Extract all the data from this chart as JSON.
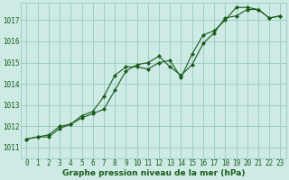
{
  "xlabel": "Graphe pression niveau de la mer (hPa)",
  "bg_color": "#cdeae5",
  "grid_color": "#a0cdc8",
  "line_color": "#1a5c1a",
  "marker_color": "#1a5c1a",
  "x_ticks": [
    0,
    1,
    2,
    3,
    4,
    5,
    6,
    7,
    8,
    9,
    10,
    11,
    12,
    13,
    14,
    15,
    16,
    17,
    18,
    19,
    20,
    21,
    22,
    23
  ],
  "y_ticks": [
    1011,
    1012,
    1013,
    1014,
    1015,
    1016,
    1017
  ],
  "xlim": [
    -0.5,
    23.5
  ],
  "ylim": [
    1010.5,
    1017.8
  ],
  "series1_x": [
    0,
    1,
    2,
    3,
    4,
    5,
    6,
    7,
    8,
    9,
    10,
    11,
    12,
    13,
    14,
    15,
    16,
    17,
    18,
    19,
    20,
    21,
    22,
    23
  ],
  "series1_y": [
    1011.4,
    1011.5,
    1011.5,
    1011.9,
    1012.1,
    1012.4,
    1012.6,
    1012.8,
    1013.7,
    1014.6,
    1014.9,
    1015.0,
    1015.3,
    1014.8,
    1014.4,
    1014.9,
    1015.9,
    1016.4,
    1017.1,
    1017.2,
    1017.5,
    1017.5,
    1017.1,
    1017.2
  ],
  "series2_x": [
    0,
    1,
    2,
    3,
    4,
    5,
    6,
    7,
    8,
    9,
    10,
    11,
    12,
    13,
    14,
    15,
    16,
    17,
    18,
    19,
    20,
    21,
    22,
    23
  ],
  "series2_y": [
    1011.4,
    1011.5,
    1011.6,
    1012.0,
    1012.1,
    1012.5,
    1012.7,
    1013.4,
    1014.4,
    1014.8,
    1014.8,
    1014.7,
    1015.0,
    1015.1,
    1014.3,
    1015.4,
    1016.3,
    1016.5,
    1017.0,
    1017.6,
    1017.6,
    1017.5,
    1017.1,
    1017.2
  ],
  "tick_label_fontsize": 5.5,
  "xlabel_fontsize": 6.5
}
